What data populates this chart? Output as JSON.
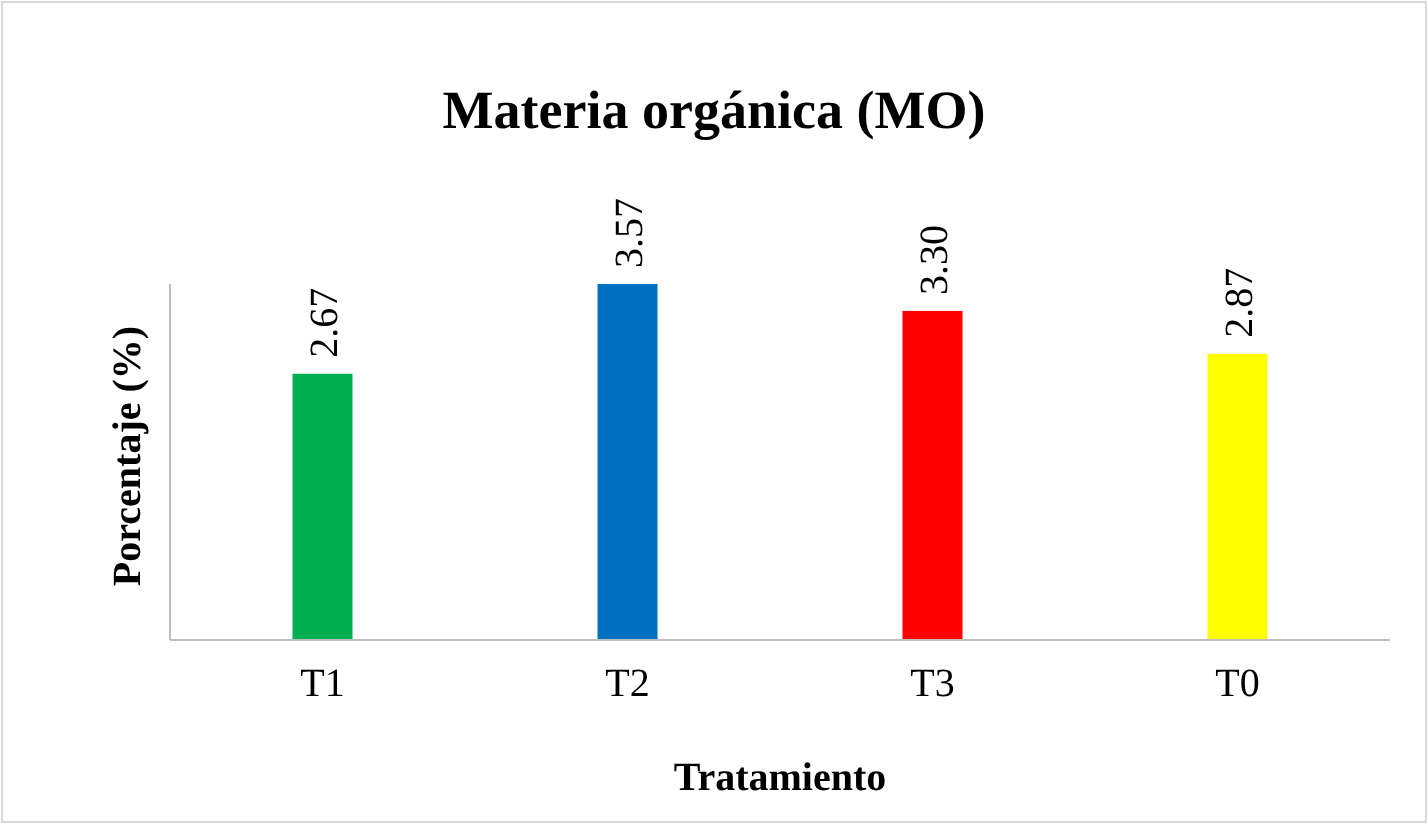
{
  "chart_data": {
    "type": "bar",
    "title": "Materia orgánica (MO)",
    "xlabel": "Tratamiento",
    "ylabel": "Porcentaje (%)",
    "categories": [
      "T1",
      "T2",
      "T3",
      "T0"
    ],
    "values": [
      2.67,
      3.57,
      3.3,
      2.87
    ],
    "value_labels": [
      "2.67",
      "3.57",
      "3.30",
      "2.87"
    ],
    "colors": [
      "#00b050",
      "#0070c0",
      "#ff0000",
      "#ffff00"
    ],
    "tick_labels": "x",
    "grid": false
  }
}
